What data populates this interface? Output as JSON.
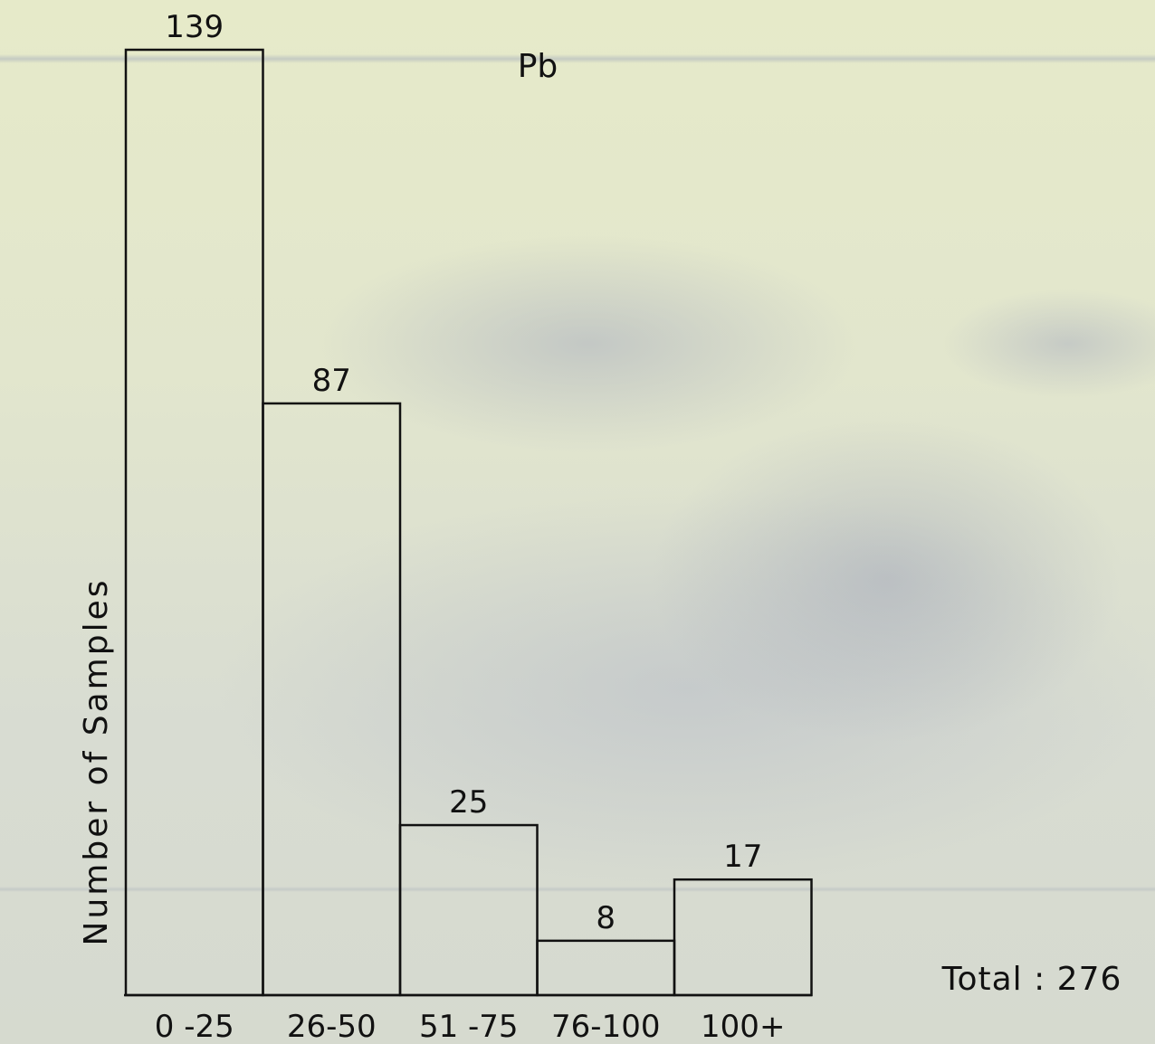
{
  "chart_data": {
    "type": "bar",
    "title": "Pb",
    "ylabel": "Number of Samples",
    "xlabel": "",
    "categories": [
      "0 -25",
      "26-50",
      "51 -75",
      "76-100",
      "100+"
    ],
    "values": [
      139,
      87,
      25,
      8,
      17
    ],
    "data_labels": [
      "139",
      "87",
      "25",
      "8",
      "17"
    ],
    "ylim": [
      0,
      139
    ],
    "grid": false,
    "bar_fill": "none",
    "bar_stroke": "#111111",
    "total_label": "Total : 276"
  }
}
